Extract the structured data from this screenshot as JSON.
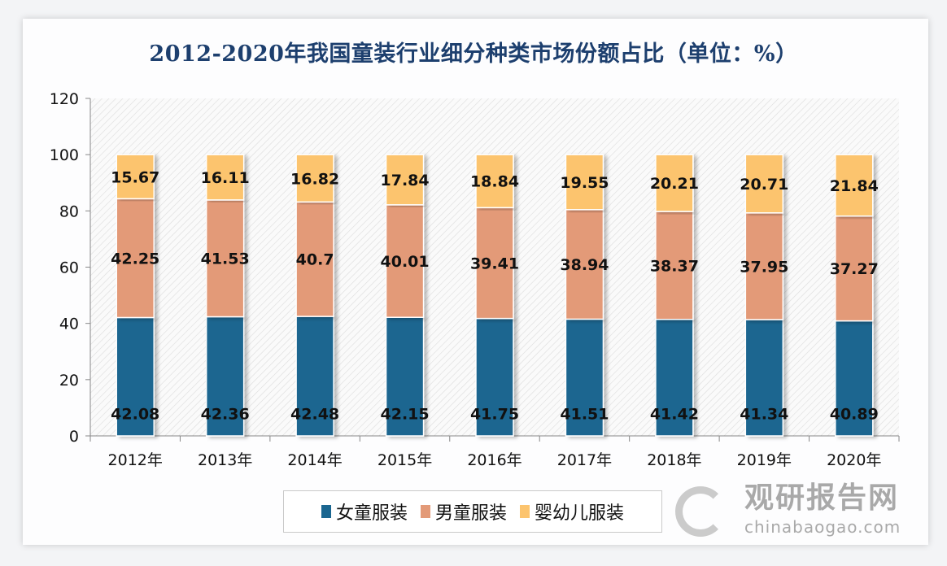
{
  "chart_data": {
    "type": "bar",
    "stacked": true,
    "title": "2012-2020年我国童装行业细分种类市场份额占比（单位：%）",
    "xlabel": "",
    "ylabel": "",
    "ylim": [
      0,
      120
    ],
    "yticks": [
      "0",
      "20",
      "40",
      "60",
      "80",
      "100",
      "120"
    ],
    "grid": false,
    "legend_position": "bottom",
    "categories": [
      "2012年",
      "2013年",
      "2014年",
      "2015年",
      "2016年",
      "2017年",
      "2018年",
      "2019年",
      "2020年"
    ],
    "series": [
      {
        "name": "女童服装",
        "color": "#1a6690",
        "values": [
          42.08,
          42.36,
          42.48,
          42.15,
          41.75,
          41.51,
          41.42,
          41.34,
          40.89
        ],
        "labels": [
          "42.08",
          "42.36",
          "42.48",
          "42.15",
          "41.75",
          "41.51",
          "41.42",
          "41.34",
          "40.89"
        ]
      },
      {
        "name": "男童服装",
        "color": "#e39a78",
        "values": [
          42.25,
          41.53,
          40.7,
          40.01,
          39.41,
          38.94,
          38.37,
          37.95,
          37.27
        ],
        "labels": [
          "42.25",
          "41.53",
          "40.7",
          "40.01",
          "39.41",
          "38.94",
          "38.37",
          "37.95",
          "37.27"
        ]
      },
      {
        "name": "婴幼儿服装",
        "color": "#fcc46e",
        "values": [
          15.67,
          16.11,
          16.82,
          17.84,
          18.84,
          19.55,
          20.21,
          20.71,
          21.84
        ],
        "labels": [
          "15.67",
          "16.11",
          "16.82",
          "17.84",
          "18.84",
          "19.55",
          "20.21",
          "20.71",
          "21.84"
        ]
      }
    ]
  },
  "watermark": {
    "cn": "观研报告网",
    "en": "chinabaogao.com"
  }
}
